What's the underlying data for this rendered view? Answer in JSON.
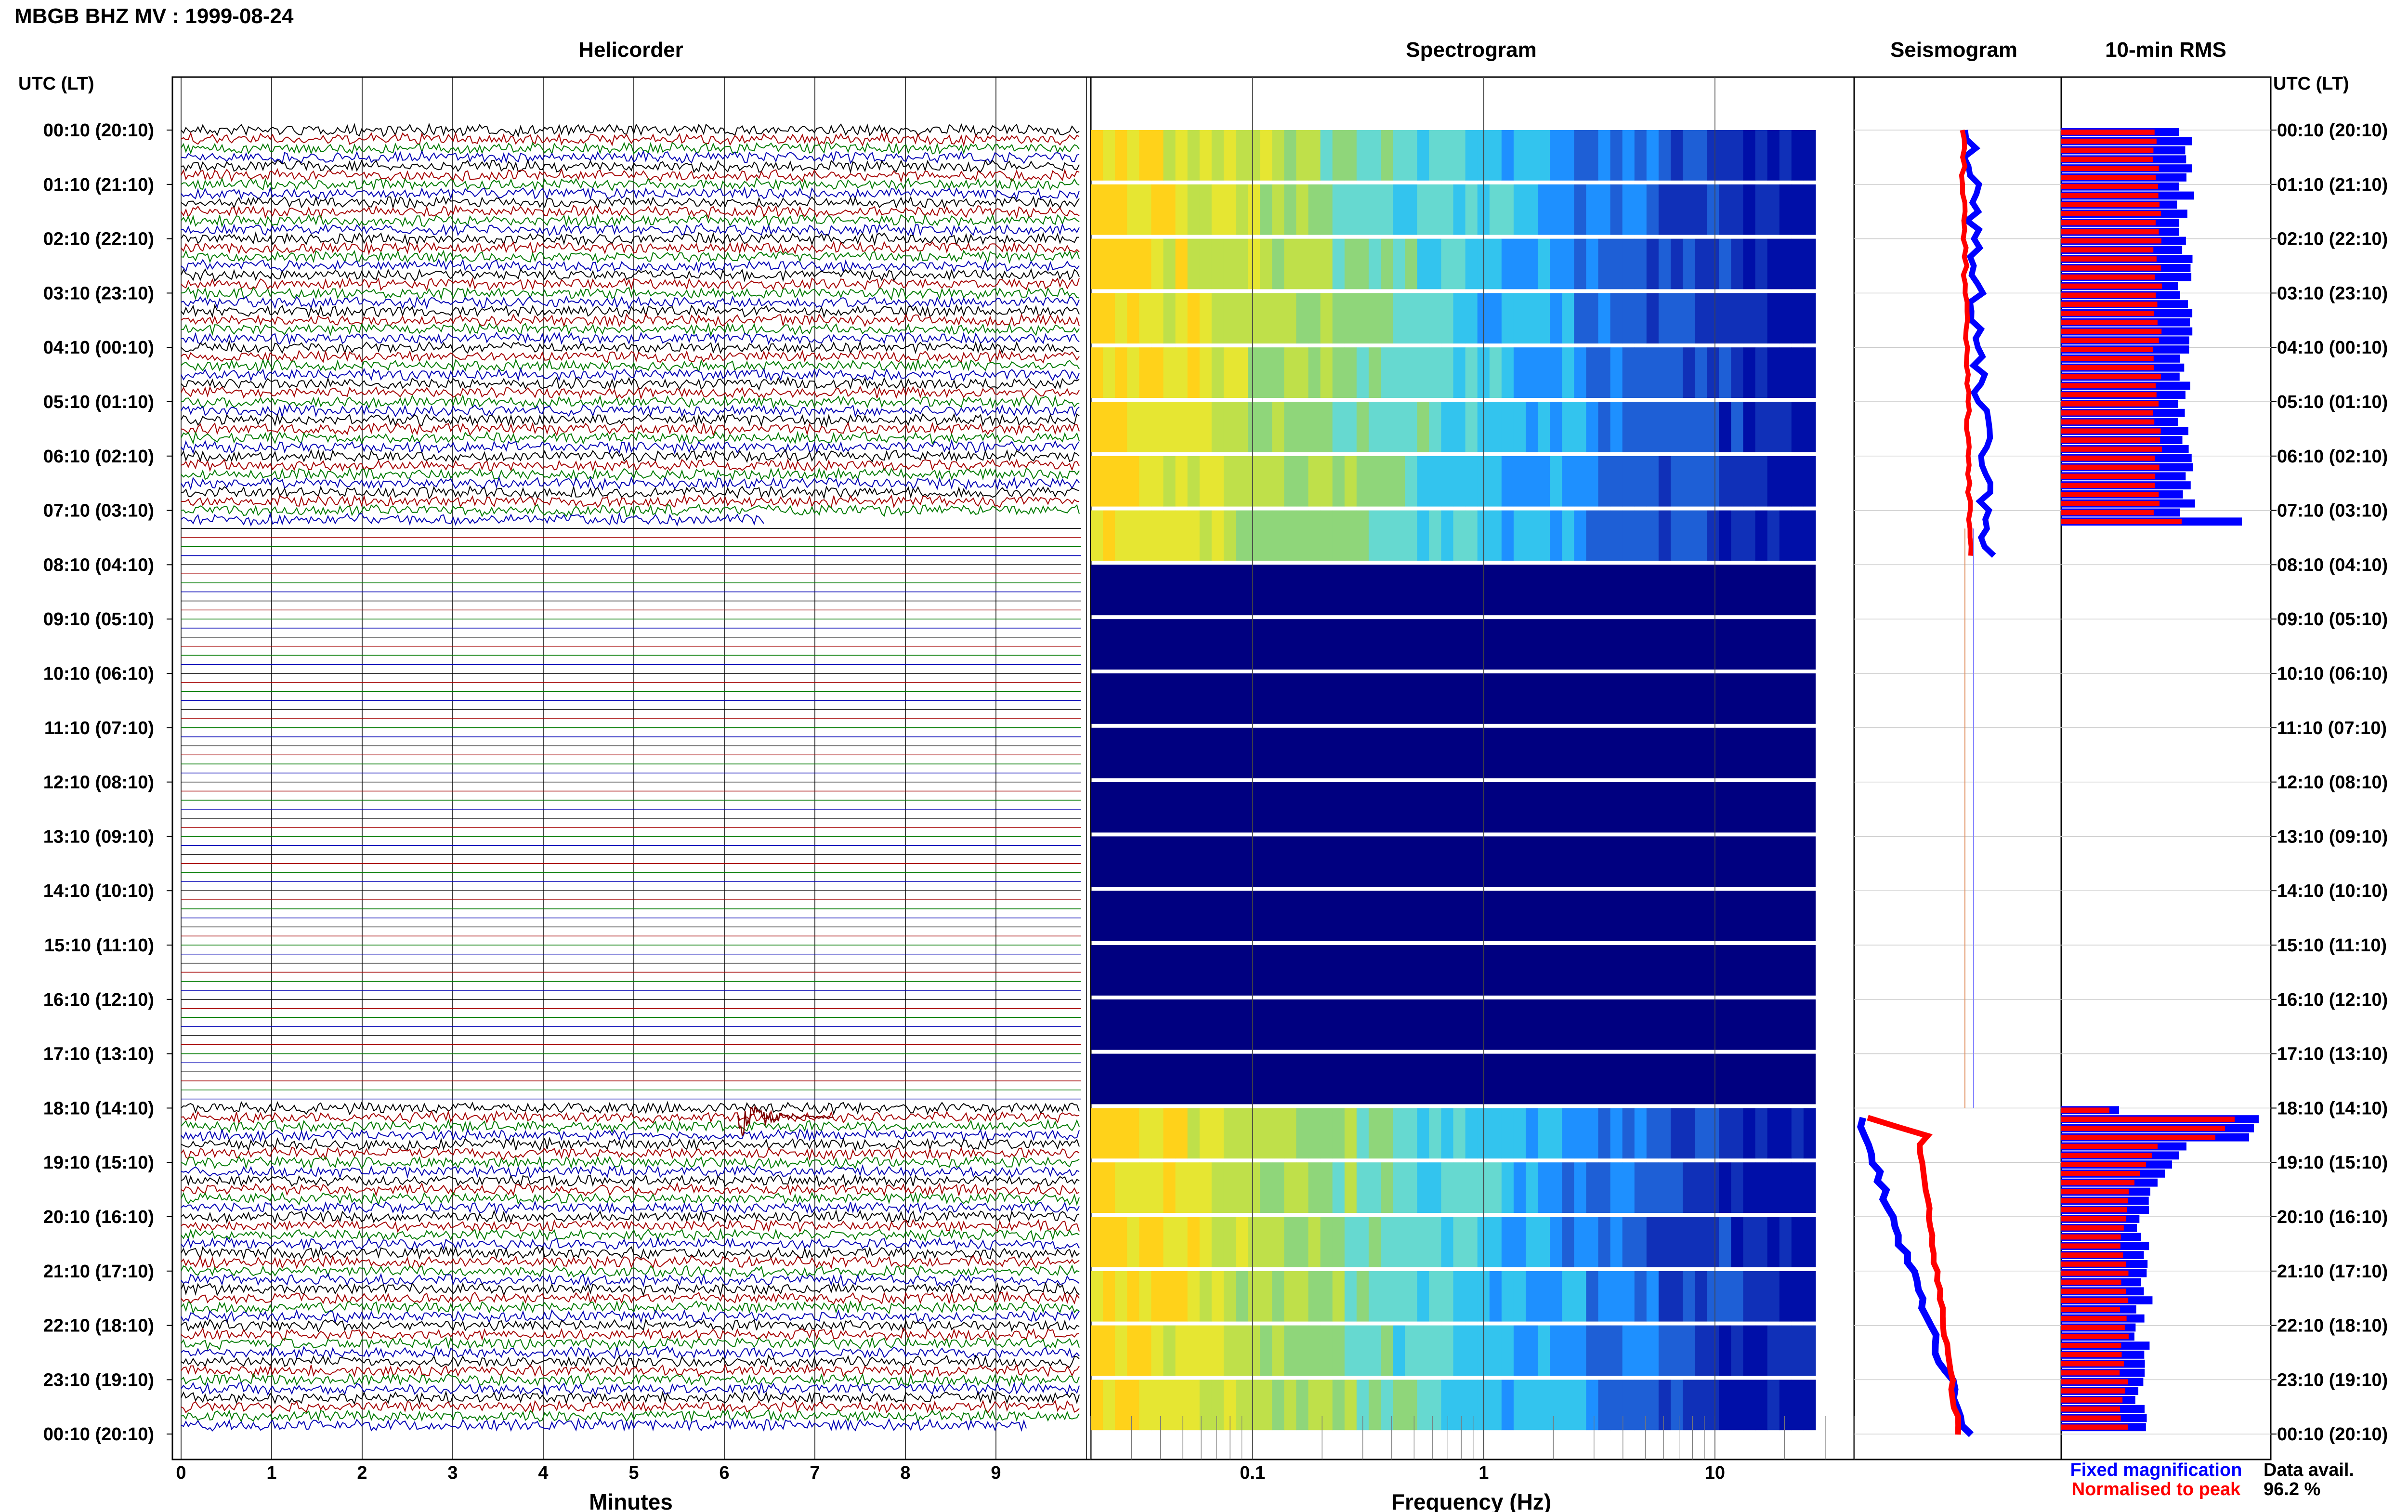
{
  "title": "MBGB BHZ MV : 1999-08-24",
  "axis_label_left": "UTC (LT)",
  "axis_label_right": "UTC (LT)",
  "panels": {
    "helicorder": "Helicorder",
    "spectrogram": "Spectrogram",
    "seismogram": "Seismogram",
    "rms": "10-min RMS"
  },
  "row_labels": [
    "00:10 (20:10)",
    "01:10 (21:10)",
    "02:10 (22:10)",
    "03:10 (23:10)",
    "04:10 (00:10)",
    "05:10 (01:10)",
    "06:10 (02:10)",
    "07:10 (03:10)",
    "08:10 (04:10)",
    "09:10 (05:10)",
    "10:10 (06:10)",
    "11:10 (07:10)",
    "12:10 (08:10)",
    "13:10 (09:10)",
    "14:10 (10:10)",
    "15:10 (11:10)",
    "16:10 (12:10)",
    "17:10 (13:10)",
    "18:10 (14:10)",
    "19:10 (15:10)",
    "20:10 (16:10)",
    "21:10 (17:10)",
    "22:10 (18:10)",
    "23:10 (19:10)",
    "00:10 (20:10)"
  ],
  "helicorder_xlabel": "Minutes",
  "helicorder_ticks": [
    "0",
    "1",
    "2",
    "3",
    "4",
    "5",
    "6",
    "7",
    "8",
    "9"
  ],
  "spectrogram_xlabel": "Frequency (Hz)",
  "spectrogram_ticks": [
    "0.1",
    "1",
    "10"
  ],
  "legend": {
    "fixed": "Fixed magnification",
    "normalised": "Normalised to peak"
  },
  "data_avail_label": "Data avail.",
  "data_avail_value": "96.2 %",
  "colors": {
    "trace_black": "#000000",
    "trace_red": "#a40000",
    "trace_green": "#007a00",
    "trace_blue": "#0000b4",
    "fixed": "#0000ff",
    "normalised": "#ff0000",
    "spec_dead": "#000080"
  },
  "chart_data": {
    "type": "heatmap",
    "helicorder": {
      "xlabel": "Minutes",
      "xlim": [
        0,
        10
      ],
      "lines_per_hour": 6,
      "gap_start_utc": "07:30",
      "gap_end_utc": "18:00",
      "event_utc": "18:16",
      "trace_color_cycle": [
        "black",
        "red",
        "green",
        "blue"
      ]
    },
    "spectrogram": {
      "xlabel": "Frequency (Hz)",
      "xscale": "log",
      "xlim": [
        0.02,
        40
      ],
      "gap_rows": "08:10 – 17:10 (dead channel)"
    },
    "seismogram": {
      "legend": [
        "Fixed magnification",
        "Normalised to peak"
      ]
    },
    "rms": {
      "title": "10-min RMS",
      "series": [
        {
          "name": "Fixed magnification"
        },
        {
          "name": "Normalised to peak"
        }
      ]
    },
    "data_availability_percent": 96.2
  }
}
